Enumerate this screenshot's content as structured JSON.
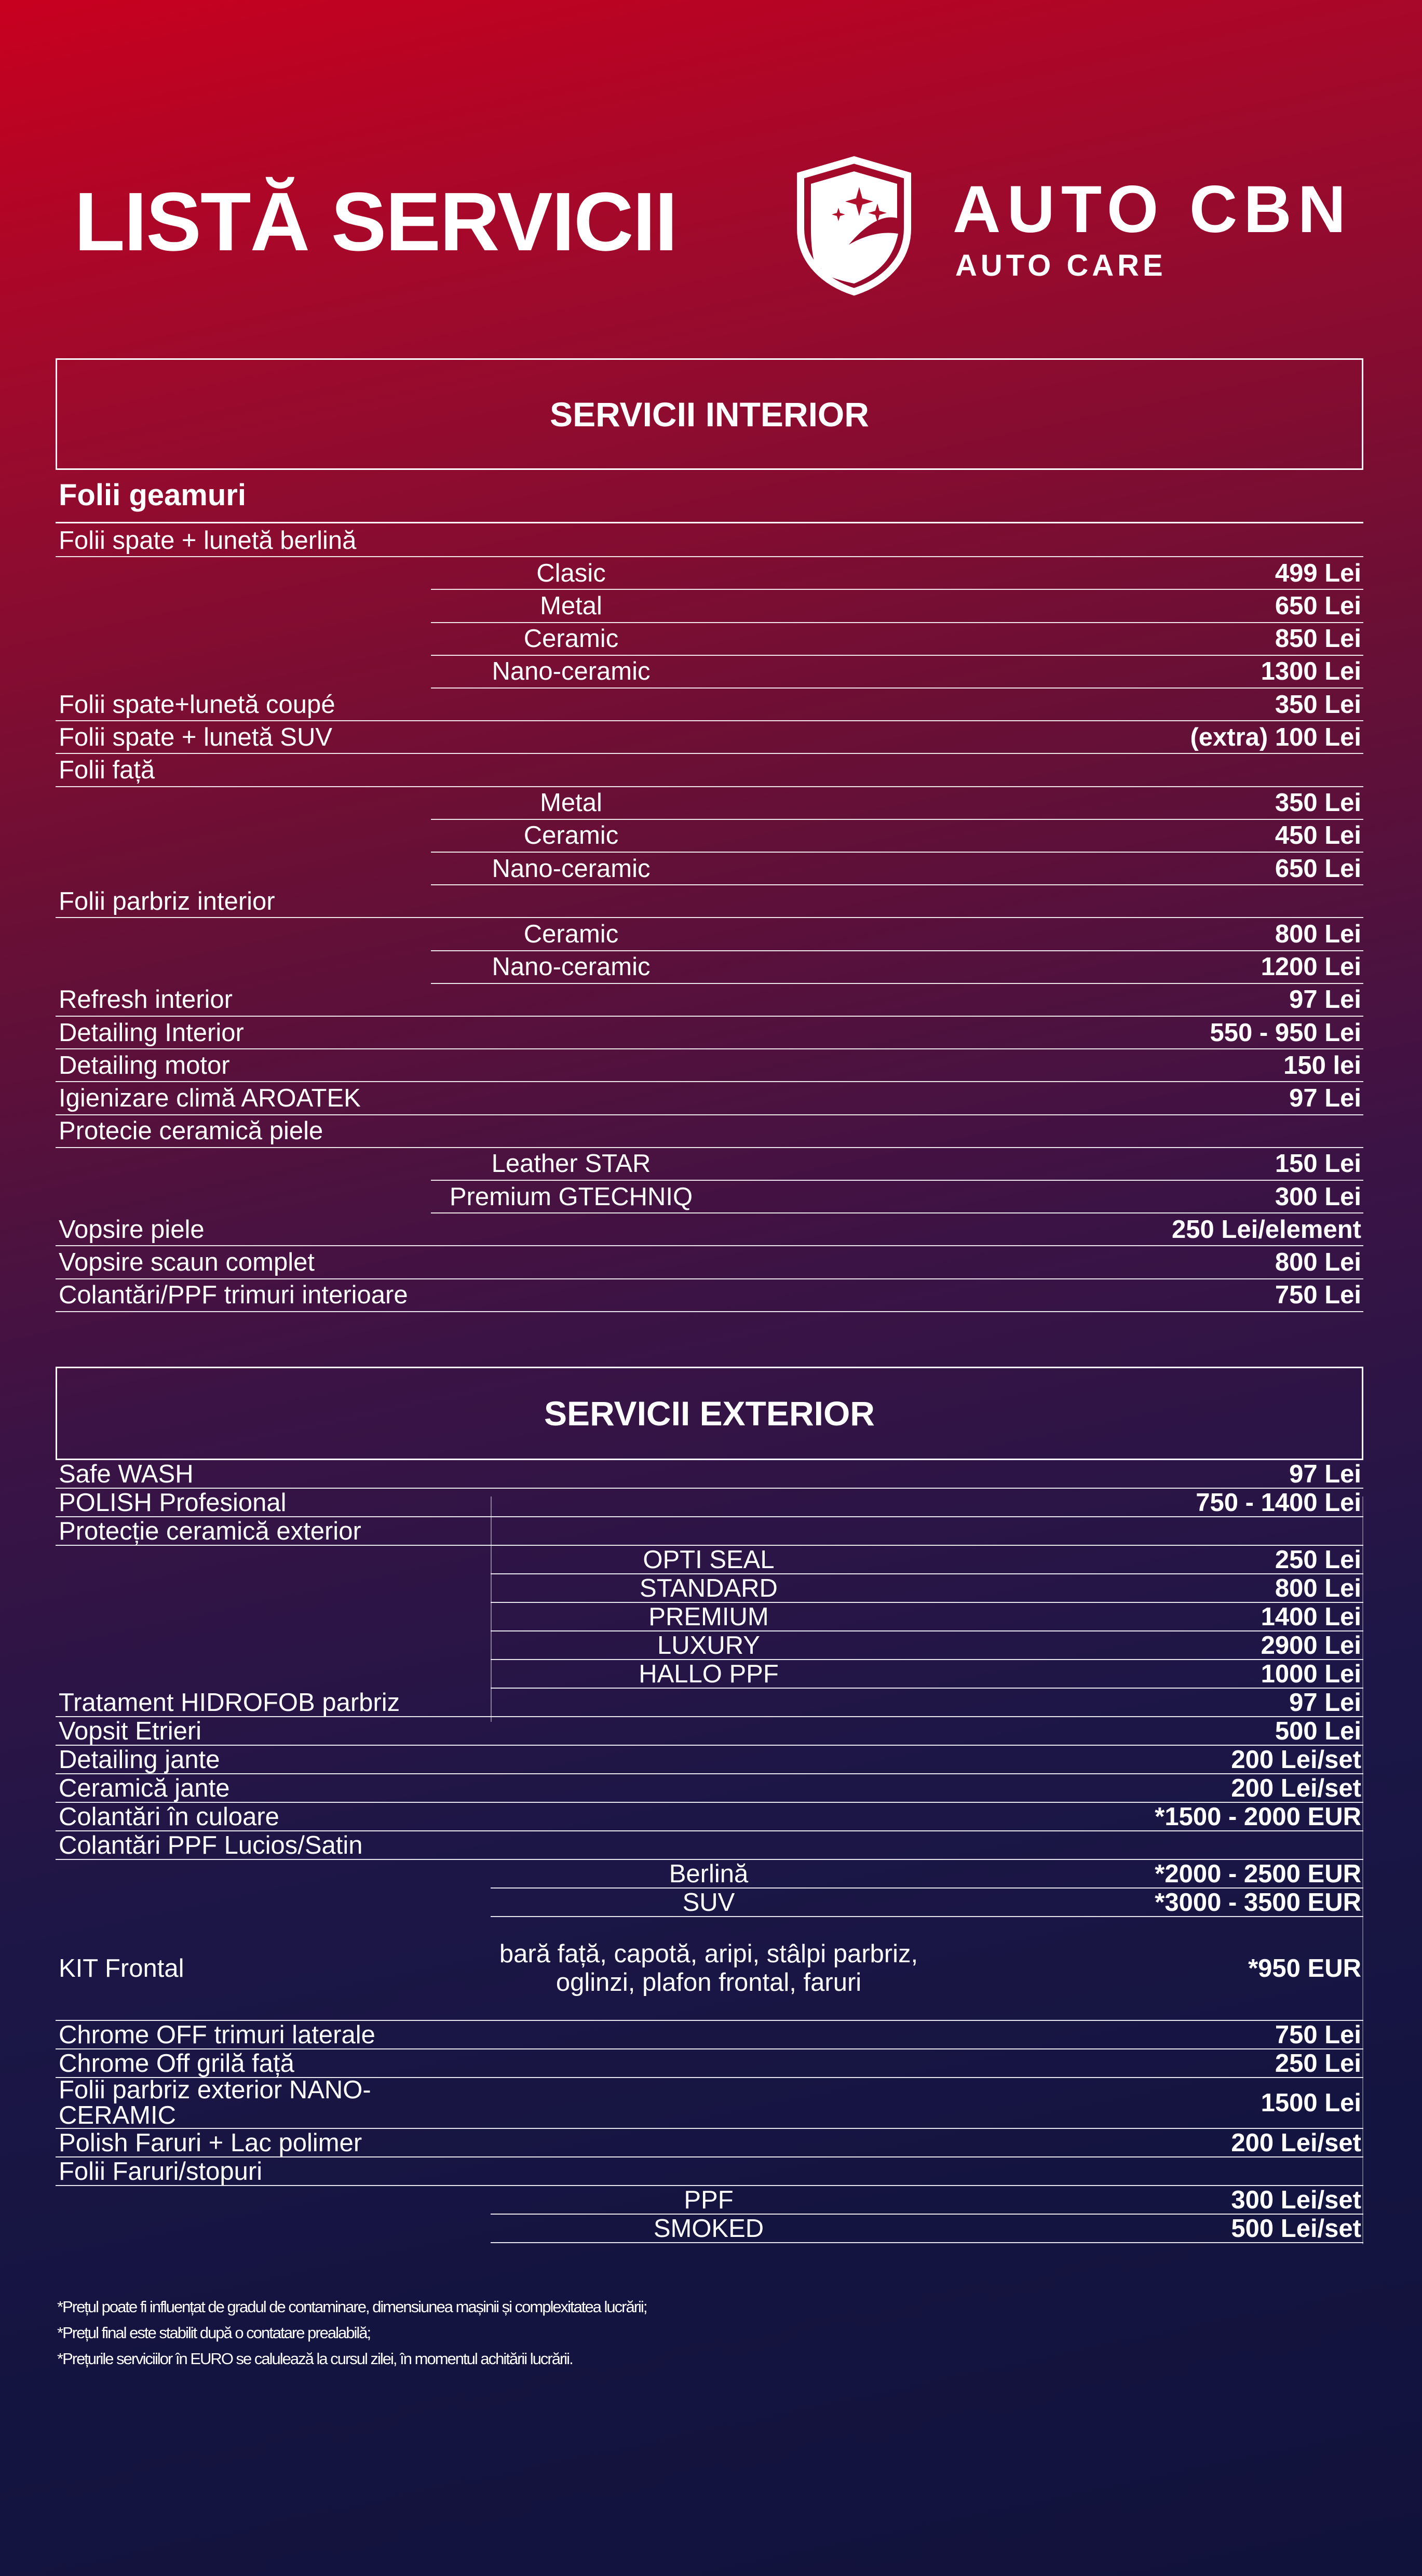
{
  "header": {
    "title": "LISTĂ SERVICII",
    "logo_name": "AUTO CBN",
    "logo_tagline": "AUTO CARE",
    "logo_icon": "shield-stars-icon"
  },
  "colors": {
    "gradient_top": "#c8001f",
    "gradient_middle": "#3c1345",
    "gradient_bottom": "#11123c",
    "text": "#ffffff"
  },
  "interior": {
    "title": "SERVICII INTERIOR",
    "group_title": "Folii geamuri",
    "rows": [
      {
        "label": "Folii spate + lunetă berlină",
        "sub": "",
        "price": ""
      },
      {
        "label": "",
        "sub": "Clasic",
        "price": "499 Lei"
      },
      {
        "label": "",
        "sub": "Metal",
        "price": "650 Lei"
      },
      {
        "label": "",
        "sub": "Ceramic",
        "price": "850 Lei"
      },
      {
        "label": "",
        "sub": "Nano-ceramic",
        "price": "1300 Lei"
      },
      {
        "label": "Folii spate+lunetă coupé",
        "sub": "",
        "price": "350 Lei"
      },
      {
        "label": "Folii spate + lunetă SUV",
        "sub": "",
        "price": "(extra) 100 Lei"
      },
      {
        "label": "Folii față",
        "sub": "",
        "price": ""
      },
      {
        "label": "",
        "sub": "Metal",
        "price": "350 Lei"
      },
      {
        "label": "",
        "sub": "Ceramic",
        "price": "450 Lei"
      },
      {
        "label": "",
        "sub": "Nano-ceramic",
        "price": "650 Lei"
      },
      {
        "label": "Folii parbriz interior",
        "sub": "",
        "price": ""
      },
      {
        "label": "",
        "sub": "Ceramic",
        "price": "800 Lei"
      },
      {
        "label": "",
        "sub": "Nano-ceramic",
        "price": "1200 Lei"
      },
      {
        "label": "Refresh interior",
        "sub": "",
        "price": "97 Lei"
      },
      {
        "label": "Detailing Interior",
        "sub": "",
        "price": "550 - 950 Lei"
      },
      {
        "label": "Detailing motor",
        "sub": "",
        "price": "150 lei"
      },
      {
        "label": "Igienizare climă AROATEK",
        "sub": "",
        "price": "97 Lei"
      },
      {
        "label": "Protecie ceramică piele",
        "sub": "",
        "price": ""
      },
      {
        "label": "",
        "sub": "Leather STAR",
        "price": "150 Lei"
      },
      {
        "label": "",
        "sub": "Premium GTECHNIQ",
        "price": "300 Lei"
      },
      {
        "label": "Vopsire piele",
        "sub": "",
        "price": "250 Lei/element"
      },
      {
        "label": "Vopsire scaun complet",
        "sub": "",
        "price": "800 Lei"
      },
      {
        "label": "Colantări/PPF trimuri interioare",
        "sub": "",
        "price": "750 Lei"
      }
    ]
  },
  "exterior": {
    "title": "SERVICII EXTERIOR",
    "rows": [
      {
        "label": "Safe WASH",
        "sub": "",
        "price": "97 Lei"
      },
      {
        "label": "POLISH Profesional",
        "sub": "",
        "price": "750 - 1400 Lei"
      },
      {
        "label": "Protecție ceramică exterior",
        "sub": "",
        "price": ""
      },
      {
        "label": "",
        "sub": "OPTI SEAL",
        "price": "250 Lei"
      },
      {
        "label": "",
        "sub": "STANDARD",
        "price": "800 Lei"
      },
      {
        "label": "",
        "sub": "PREMIUM",
        "price": "1400 Lei"
      },
      {
        "label": "",
        "sub": "LUXURY",
        "price": "2900 Lei"
      },
      {
        "label": "",
        "sub": "HALLO PPF",
        "price": "1000 Lei"
      },
      {
        "label": "Tratament HIDROFOB parbriz",
        "sub": "",
        "price": "97 Lei"
      },
      {
        "label": "Vopsit Etrieri",
        "sub": "",
        "price": "500 Lei"
      },
      {
        "label": "Detailing jante",
        "sub": "",
        "price": "200 Lei/set"
      },
      {
        "label": "Ceramică jante",
        "sub": "",
        "price": "200 Lei/set"
      },
      {
        "label": "Colantări în culoare",
        "sub": "",
        "price": "*1500 - 2000 EUR"
      },
      {
        "label": "Colantări PPF Lucios/Satin",
        "sub": "",
        "price": ""
      },
      {
        "label": "",
        "sub": "Berlină",
        "price": "*2000 - 2500 EUR"
      },
      {
        "label": "",
        "sub": "SUV",
        "price": "*3000 - 3500 EUR"
      },
      {
        "label": "KIT Frontal",
        "sub": "bară față, capotă, aripi, stâlpi parbriz, oglinzi, plafon frontal, faruri",
        "price": "*950 EUR"
      },
      {
        "label": "Chrome OFF trimuri laterale",
        "sub": "",
        "price": "750 Lei"
      },
      {
        "label": "Chrome Off grilă față",
        "sub": "",
        "price": "250 Lei"
      },
      {
        "label": "Folii parbriz exterior NANO-CERAMIC",
        "sub": "",
        "price": "1500 Lei"
      },
      {
        "label": "Polish Faruri + Lac polimer",
        "sub": "",
        "price": "200 Lei/set"
      },
      {
        "label": "Folii Faruri/stopuri",
        "sub": "",
        "price": ""
      },
      {
        "label": "",
        "sub": "PPF",
        "price": "300 Lei/set"
      },
      {
        "label": "",
        "sub": "SMOKED",
        "price": "500 Lei/set"
      }
    ]
  },
  "notes": [
    "*Prețul poate fi influențat de gradul de contaminare, dimensiunea mașinii și complexitatea lucrării;",
    "*Prețul final este stabilit după o contatare prealabilă;",
    "*Prețurile serviciilor în EURO se calulează la cursul zilei, în momentul achitării lucrării."
  ]
}
